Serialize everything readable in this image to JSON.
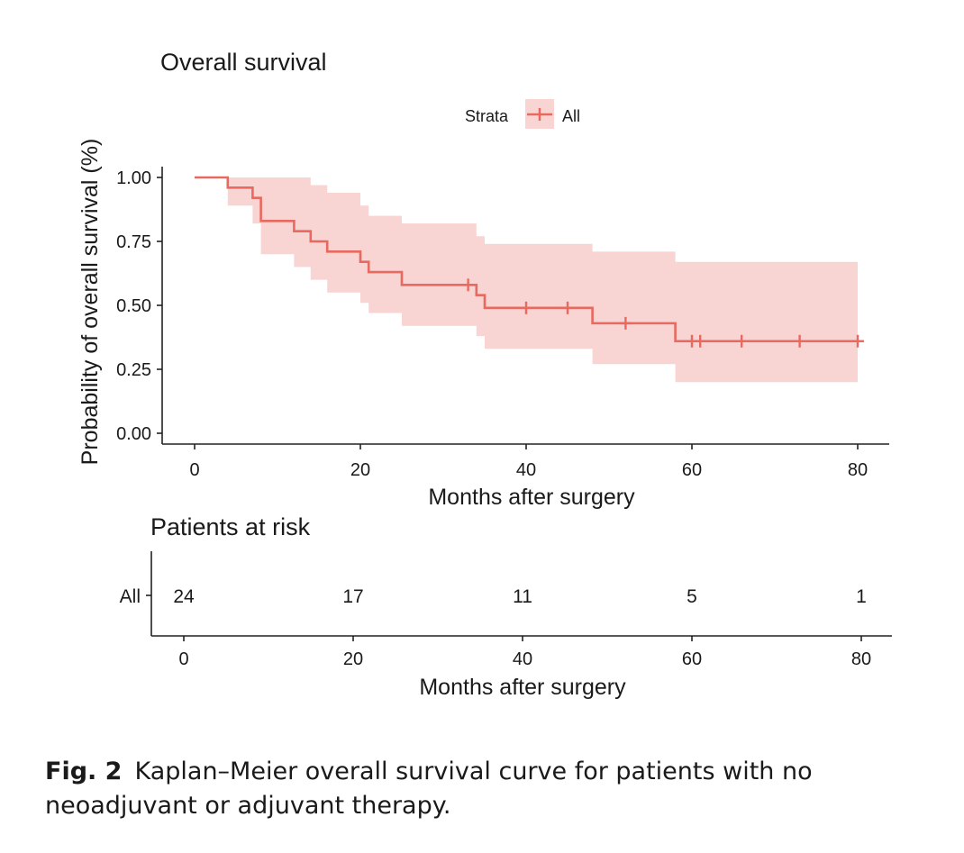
{
  "chart_data": [
    {
      "type": "line",
      "subtype": "kaplan-meier step curve with confidence band",
      "title": "Overall survival",
      "xlabel": "Months after surgery",
      "ylabel": "Probability of overall survival (%)",
      "xlim": [
        0,
        80
      ],
      "ylim": [
        0,
        1
      ],
      "x_ticks": [
        0,
        20,
        40,
        60,
        80
      ],
      "y_ticks": [
        0.0,
        0.25,
        0.5,
        0.75,
        1.0
      ],
      "y_tick_labels": [
        "0.00",
        "0.25",
        "0.50",
        "0.75",
        "1.00"
      ],
      "legend": {
        "title": "Strata",
        "position": "top",
        "entries": [
          "All"
        ]
      },
      "color": "#e8695f",
      "band_color": "#f8d4d2",
      "series": [
        {
          "name": "All",
          "steps": [
            {
              "x": 0,
              "y": 1.0
            },
            {
              "x": 4,
              "y": 0.96
            },
            {
              "x": 7,
              "y": 0.92
            },
            {
              "x": 8,
              "y": 0.83
            },
            {
              "x": 12,
              "y": 0.79
            },
            {
              "x": 14,
              "y": 0.75
            },
            {
              "x": 16,
              "y": 0.71
            },
            {
              "x": 20,
              "y": 0.67
            },
            {
              "x": 21,
              "y": 0.63
            },
            {
              "x": 25,
              "y": 0.58
            },
            {
              "x": 34,
              "y": 0.54
            },
            {
              "x": 35,
              "y": 0.49
            },
            {
              "x": 48,
              "y": 0.43
            },
            {
              "x": 58,
              "y": 0.36
            },
            {
              "x": 80,
              "y": 0.36
            }
          ],
          "ci": [
            {
              "x": 0,
              "lower": 1.0,
              "upper": 1.0
            },
            {
              "x": 4,
              "lower": 0.89,
              "upper": 1.0
            },
            {
              "x": 7,
              "lower": 0.82,
              "upper": 1.0
            },
            {
              "x": 8,
              "lower": 0.7,
              "upper": 1.0
            },
            {
              "x": 12,
              "lower": 0.65,
              "upper": 1.0
            },
            {
              "x": 14,
              "lower": 0.6,
              "upper": 0.97
            },
            {
              "x": 16,
              "lower": 0.55,
              "upper": 0.94
            },
            {
              "x": 20,
              "lower": 0.51,
              "upper": 0.89
            },
            {
              "x": 21,
              "lower": 0.47,
              "upper": 0.85
            },
            {
              "x": 25,
              "lower": 0.42,
              "upper": 0.82
            },
            {
              "x": 34,
              "lower": 0.38,
              "upper": 0.77
            },
            {
              "x": 35,
              "lower": 0.33,
              "upper": 0.74
            },
            {
              "x": 48,
              "lower": 0.27,
              "upper": 0.71
            },
            {
              "x": 58,
              "lower": 0.2,
              "upper": 0.67
            },
            {
              "x": 80,
              "lower": 0.2,
              "upper": 0.67
            }
          ],
          "censored": [
            {
              "x": 33,
              "y": 0.58
            },
            {
              "x": 40,
              "y": 0.49
            },
            {
              "x": 45,
              "y": 0.49
            },
            {
              "x": 52,
              "y": 0.43
            },
            {
              "x": 60,
              "y": 0.36
            },
            {
              "x": 61,
              "y": 0.36
            },
            {
              "x": 66,
              "y": 0.36
            },
            {
              "x": 73,
              "y": 0.36
            },
            {
              "x": 80,
              "y": 0.36
            }
          ]
        }
      ]
    },
    {
      "type": "table",
      "title": "Patients at risk",
      "xlabel": "Months after surgery",
      "xlim": [
        0,
        80
      ],
      "x_ticks": [
        0,
        20,
        40,
        60,
        80
      ],
      "rows": [
        {
          "label": "All",
          "times": [
            0,
            20,
            40,
            60,
            80
          ],
          "counts": [
            "24",
            "17",
            "11",
            "5",
            "1"
          ]
        }
      ]
    }
  ],
  "caption": {
    "label": "Fig. 2",
    "text": "Kaplan–Meier overall survival curve for patients with no neoadjuvant or adjuvant therapy."
  }
}
